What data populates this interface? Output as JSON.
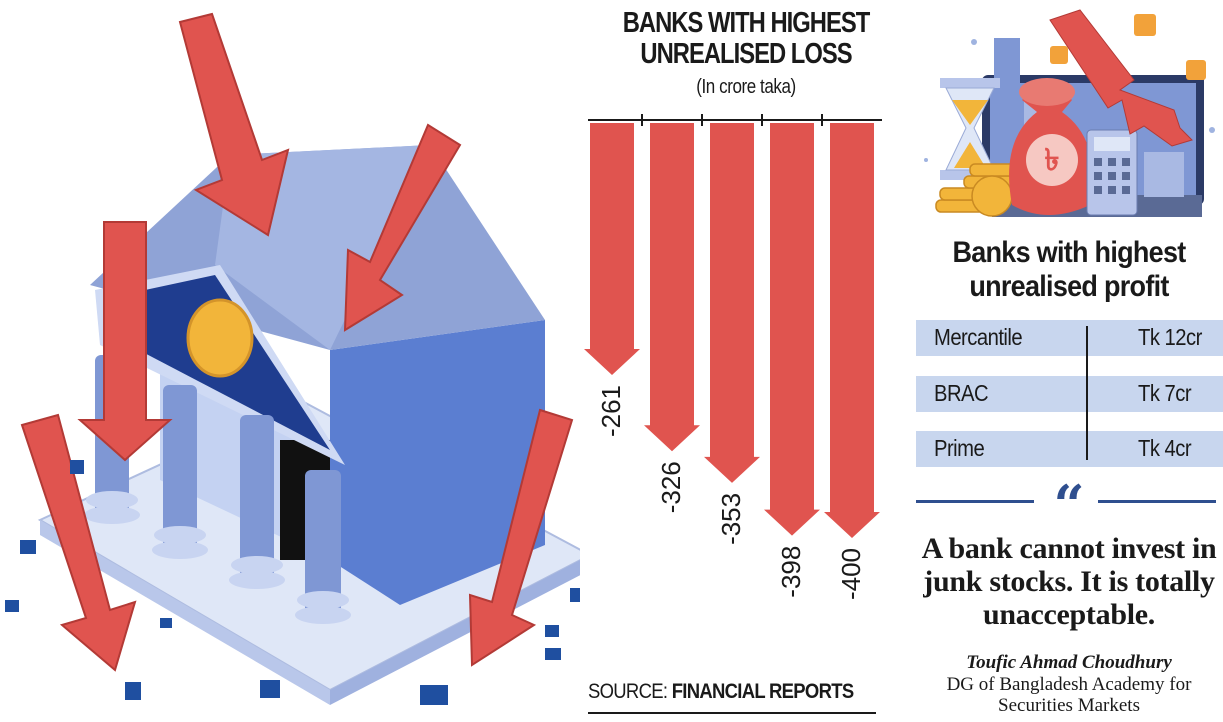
{
  "chart_data": {
    "type": "bar",
    "title": "BANKS WITH HIGHEST UNREALISED LOSS",
    "subtitle": "(In crore taka)",
    "categories": [
      "",
      "",
      "",
      "",
      ""
    ],
    "values": [
      -261,
      -326,
      -353,
      -398,
      -400
    ],
    "value_labels": [
      "-261",
      "-326",
      "-353",
      "-398",
      "-400"
    ],
    "orientation": "vertical-downward",
    "bar_color": "#e0544f",
    "ylim": [
      -400,
      0
    ],
    "grid": false
  },
  "source": {
    "prefix": "SOURCE: ",
    "name": "FINANCIAL REPORTS"
  },
  "profit_table": {
    "title_line1": "Banks with highest",
    "title_line2": "unrealised profit",
    "rows": [
      {
        "bank": "Mercantile",
        "value": "Tk 12cr"
      },
      {
        "bank": "BRAC",
        "value": "Tk 7cr"
      },
      {
        "bank": "Prime",
        "value": "Tk 4cr"
      }
    ],
    "row_color": "#c8d6ee"
  },
  "quote": {
    "mark": "“",
    "text": "A bank cannot invest in junk stocks. It is totally unacceptable.",
    "author": "Toufic Ahmad Choudhury",
    "role": "DG of Bangladesh Academy for Securities Markets"
  },
  "colors": {
    "arrow_red": "#e0544f",
    "bank_blue": "#8fa3d6",
    "pediment_navy": "#1f3d8f",
    "coin_gold": "#f2b53a",
    "quote_blue": "#2f4f8f"
  },
  "illustration": {
    "left": "bank-building-with-falling-arrows",
    "right": "money-bag-coins-calculator-downtrend"
  }
}
